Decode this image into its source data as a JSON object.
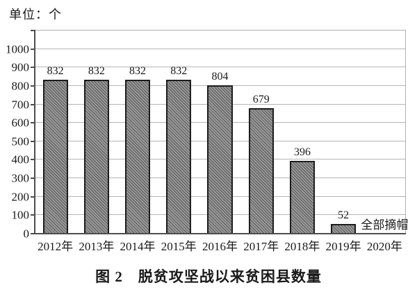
{
  "figure": {
    "unit_label": "单位：个",
    "caption": "图 2　脱贫攻坚战以来贫困县数量"
  },
  "chart_data": {
    "type": "bar",
    "title": "图 2　脱贫攻坚战以来贫困县数量",
    "unit": "单位：个",
    "categories": [
      "2012年",
      "2013年",
      "2014年",
      "2015年",
      "2016年",
      "2017年",
      "2018年",
      "2019年",
      "2020年"
    ],
    "values": [
      832,
      832,
      832,
      832,
      804,
      679,
      396,
      52,
      0
    ],
    "bar_labels": [
      "832",
      "832",
      "832",
      "832",
      "804",
      "679",
      "396",
      "52",
      ""
    ],
    "annotation": {
      "text": "全部摘帽",
      "category": "2020年",
      "value": 0
    },
    "ylim": [
      0,
      1100
    ],
    "yticks": [
      0,
      100,
      200,
      300,
      400,
      500,
      600,
      700,
      800,
      900,
      1000
    ],
    "ytick_step": 100,
    "grid": true,
    "legend": false,
    "colors": {
      "bar_fill": "#8f8f8f",
      "bar_hatch": "#5c5c5c",
      "bar_border": "#1c1c1c",
      "gridline": "#b5b5b5",
      "axis": "#4d4d4d",
      "frame": "#aeaeae",
      "text": "#1a1a1a"
    }
  }
}
